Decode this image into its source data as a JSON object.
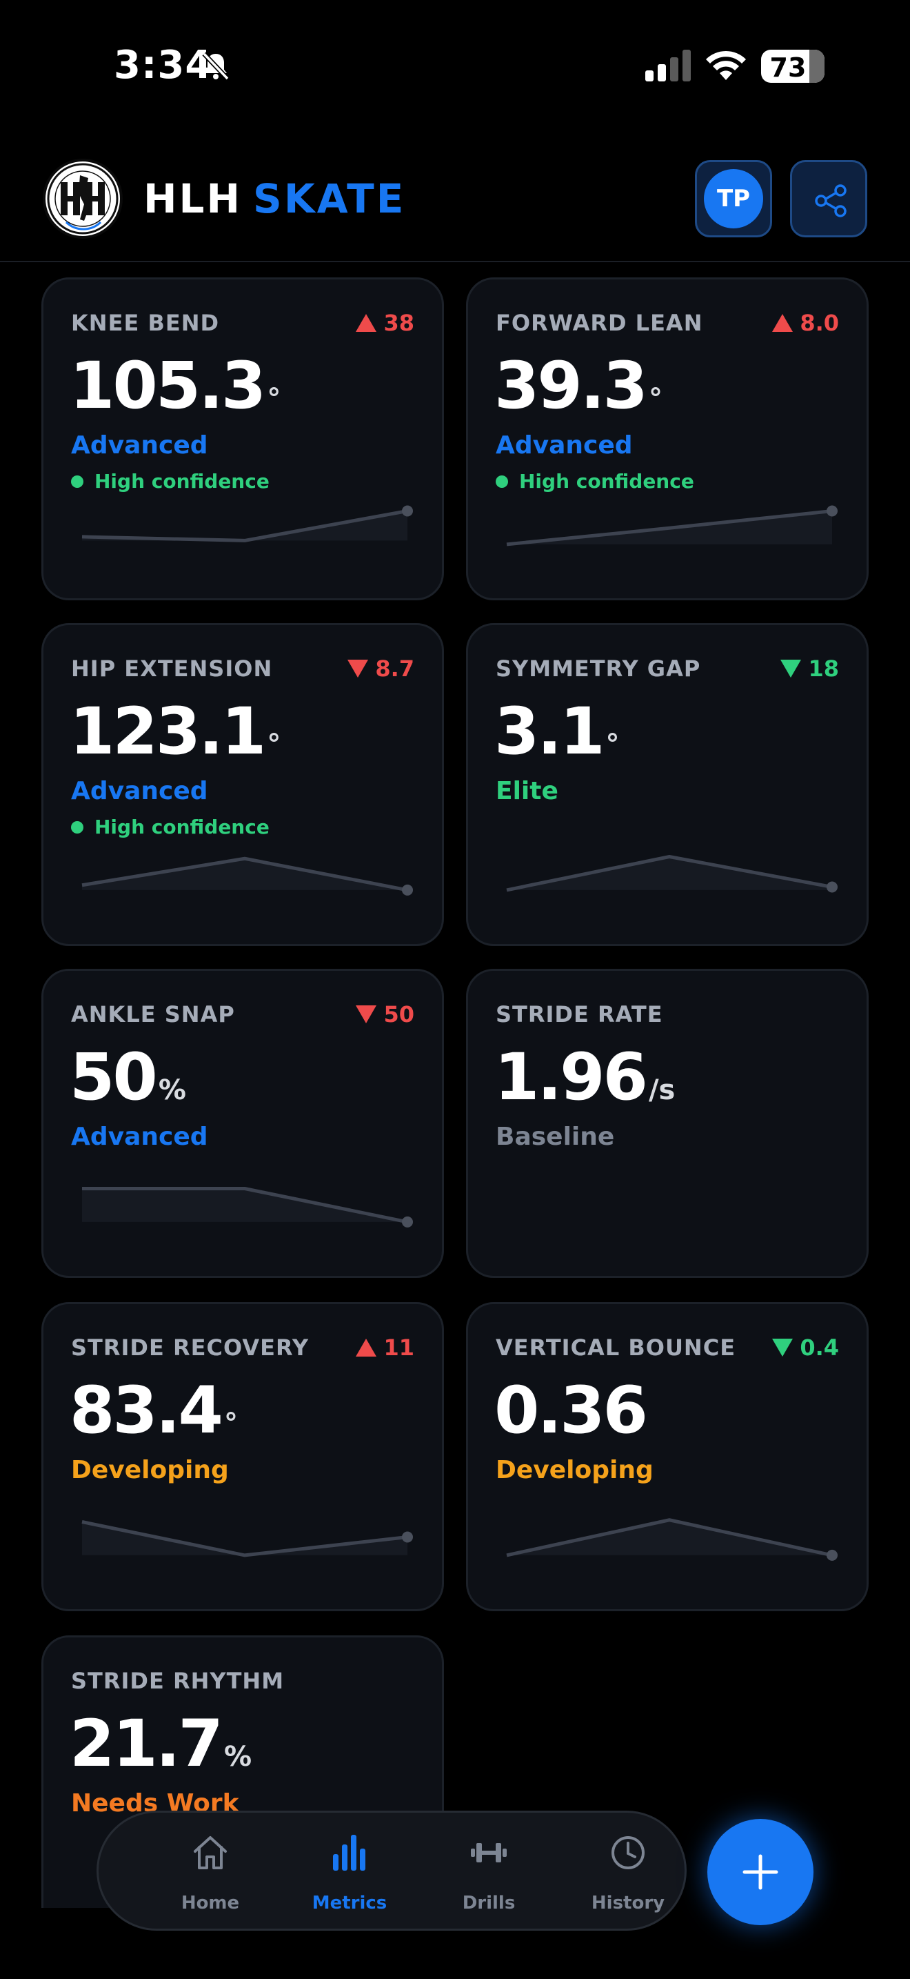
{
  "status_bar": {
    "time": "3:34",
    "battery": "73"
  },
  "header": {
    "title_part1": "HLH",
    "title_part2": "SKATE",
    "avatar_initials": "TP"
  },
  "colors": {
    "accent": "#1877f2",
    "up_bad": "#ef4b4b",
    "good": "#2fd07e",
    "developing": "#f5a21b",
    "needs_work": "#f47a22"
  },
  "metrics": [
    {
      "label": "KNEE BEND",
      "delta": "38",
      "direction": "up",
      "value": "105.3",
      "unit": "°",
      "tier": "Advanced",
      "confidence": "High confidence",
      "trend": [
        0.78,
        0.88,
        0.1
      ]
    },
    {
      "label": "FORWARD LEAN",
      "delta": "8.0",
      "direction": "up",
      "value": "39.3",
      "unit": "°",
      "tier": "Advanced",
      "confidence": "High confidence",
      "trend": [
        0.98,
        0.55,
        0.1
      ]
    },
    {
      "label": "HIP EXTENSION",
      "delta": "8.7",
      "direction": "down",
      "value": "123.1",
      "unit": "°",
      "tier": "Advanced",
      "confidence": "High confidence",
      "trend": [
        0.85,
        0.15,
        0.98
      ]
    },
    {
      "label": "SYMMETRY GAP",
      "delta": "18",
      "direction": "down",
      "value": "3.1",
      "unit": "°",
      "tier": "Elite",
      "confidence": "",
      "trend": [
        0.98,
        0.1,
        0.9
      ]
    },
    {
      "label": "ANKLE SNAP",
      "delta": "50",
      "direction": "down",
      "value": "50",
      "unit": "%",
      "tier": "Advanced",
      "confidence": "",
      "trend": [
        0.1,
        0.1,
        0.98
      ]
    },
    {
      "label": "STRIDE RATE",
      "delta": "",
      "direction": "",
      "value": "1.96",
      "unit": "/s",
      "tier": "Baseline",
      "confidence": "",
      "trend": []
    },
    {
      "label": "STRIDE RECOVERY",
      "delta": "11",
      "direction": "up",
      "value": "83.4",
      "unit": "°",
      "tier": "Developing",
      "confidence": "",
      "trend": [
        0.1,
        0.98,
        0.5
      ]
    },
    {
      "label": "VERTICAL BOUNCE",
      "delta": "0.4",
      "direction": "down",
      "value": "0.36",
      "unit": "",
      "tier": "Developing",
      "confidence": "",
      "trend": [
        0.98,
        0.05,
        0.98
      ]
    },
    {
      "label": "STRIDE RHYTHM",
      "delta": "",
      "direction": "",
      "value": "21.7",
      "unit": "%",
      "tier": "Needs Work",
      "confidence": "",
      "trend": []
    }
  ],
  "nav": {
    "home": "Home",
    "metrics": "Metrics",
    "drills": "Drills",
    "history": "History"
  }
}
